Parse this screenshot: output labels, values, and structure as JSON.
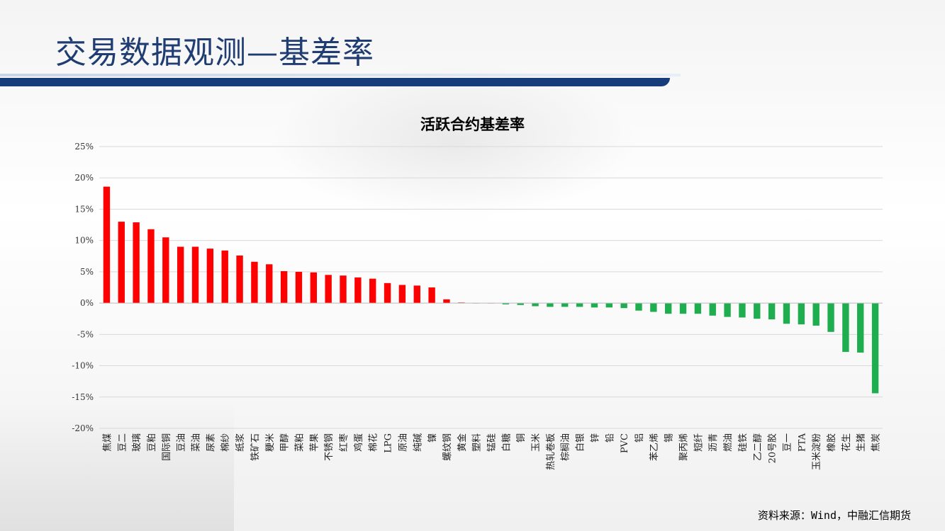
{
  "header": {
    "title": "交易数据观测—基差率"
  },
  "footer": {
    "source": "资料来源：Wind，中融汇信期货"
  },
  "colors": {
    "positive": "#ff0000",
    "negative": "#1fae4f",
    "title": "#1f3d73",
    "bar_accent": "#163d7a"
  },
  "chart_data": {
    "type": "bar",
    "title": "活跃合约基差率",
    "xlabel": "",
    "ylabel": "",
    "ylim": [
      -20,
      25
    ],
    "yticks": [
      "25%",
      "20%",
      "15%",
      "10%",
      "5%",
      "0%",
      "-5%",
      "-10%",
      "-15%",
      "-20%"
    ],
    "ytick_values": [
      25,
      20,
      15,
      10,
      5,
      0,
      -5,
      -10,
      -15,
      -20
    ],
    "grid": true,
    "legend": "none",
    "categories": [
      "焦煤",
      "豆二",
      "玻璃",
      "豆粕",
      "国际铜",
      "豆油",
      "菜油",
      "尿素",
      "棉纱",
      "纸浆",
      "铁矿石",
      "粳米",
      "甲醇",
      "菜粕",
      "苹果",
      "不锈钢",
      "红枣",
      "鸡蛋",
      "棉花",
      "LPG",
      "原油",
      "纯碱",
      "镍",
      "螺纹钢",
      "黄金",
      "塑料",
      "锰硅",
      "白糖",
      "铜",
      "玉米",
      "热轧卷板",
      "棕榈油",
      "白银",
      "锌",
      "铅",
      "PVC",
      "铝",
      "苯乙烯",
      "锡",
      "聚丙烯",
      "短纤",
      "沥青",
      "燃油",
      "硅铁",
      "乙二醇",
      "20号胶",
      "豆一",
      "PTA",
      "玉米淀粉",
      "橡胶",
      "花生",
      "生猪",
      "焦炭"
    ],
    "values": [
      18.6,
      13.0,
      12.9,
      11.8,
      10.5,
      9.0,
      9.0,
      8.7,
      8.4,
      7.6,
      6.6,
      6.2,
      5.1,
      5.0,
      4.9,
      4.5,
      4.4,
      4.1,
      3.9,
      3.2,
      2.9,
      2.8,
      2.5,
      0.6,
      0.1,
      0.0,
      0.0,
      -0.2,
      -0.3,
      -0.5,
      -0.6,
      -0.6,
      -0.6,
      -0.7,
      -0.7,
      -0.8,
      -1.2,
      -1.4,
      -1.7,
      -1.7,
      -1.7,
      -2.0,
      -2.2,
      -2.3,
      -2.5,
      -2.6,
      -3.3,
      -3.4,
      -3.6,
      -4.6,
      -7.8,
      -7.9,
      -14.4
    ]
  }
}
